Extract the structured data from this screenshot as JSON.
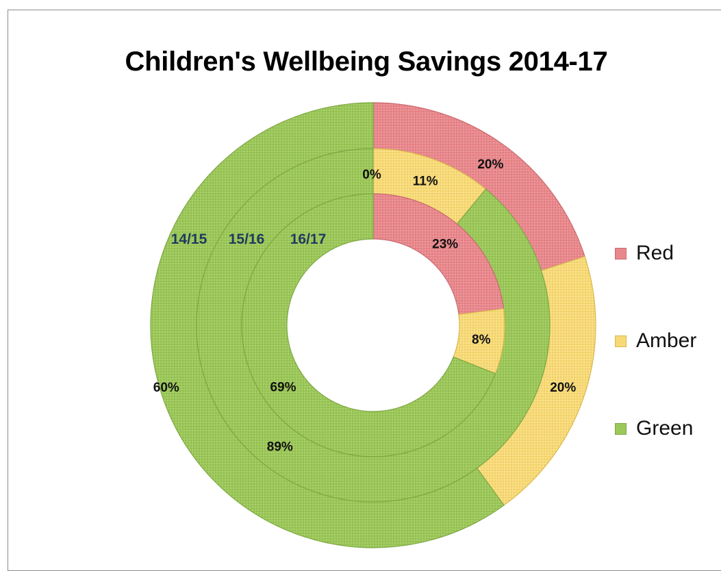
{
  "chart_data": {
    "type": "doughnut",
    "title": "Children's Wellbeing Savings 2014-17",
    "categories": [
      "Red",
      "Amber",
      "Green"
    ],
    "rings": [
      {
        "name": "14/15",
        "values": [
          20,
          20,
          60
        ],
        "labels": [
          "20%",
          "20%",
          "60%"
        ]
      },
      {
        "name": "15/16",
        "values": [
          0,
          11,
          89
        ],
        "labels": [
          "0%",
          "11%",
          "89%"
        ]
      },
      {
        "name": "16/17",
        "values": [
          23,
          8,
          69
        ],
        "labels": [
          "23%",
          "8%",
          "69%"
        ]
      }
    ],
    "colors": {
      "Red": "#e8888c",
      "Amber": "#f7d977",
      "Green": "#9cc75a"
    },
    "legend_position": "right"
  }
}
